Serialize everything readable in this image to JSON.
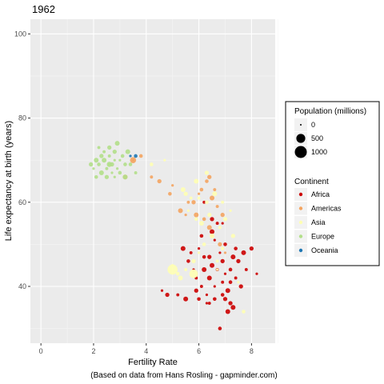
{
  "chart_data": {
    "type": "scatter",
    "title": "1962",
    "xlabel": "Fertility Rate",
    "ylabel": "Life expectancy at birth (years)",
    "caption": "(Based on data from Hans Rosling - gapminder.com)",
    "xlim": [
      -0.4,
      8.9
    ],
    "ylim": [
      26.5,
      103.5
    ],
    "x_ticks": [
      0,
      2,
      4,
      6,
      8
    ],
    "y_ticks": [
      40,
      60,
      80,
      100
    ],
    "grid": true,
    "legend_placement": "right",
    "size_legend": {
      "title": "Population (millions)",
      "entries": [
        {
          "label": "0",
          "value": 0
        },
        {
          "label": "500",
          "value": 500
        },
        {
          "label": "1000",
          "value": 1000
        }
      ]
    },
    "color_legend": {
      "title": "Continent",
      "entries": [
        {
          "label": "Africa",
          "color": "#cc0000"
        },
        {
          "label": "Americas",
          "color": "#f4a460"
        },
        {
          "label": "Asia",
          "color": "#ffffb3"
        },
        {
          "label": "Europe",
          "color": "#b2df8a"
        },
        {
          "label": "Oceania",
          "color": "#1f78b4"
        }
      ]
    },
    "series": [
      {
        "continent": "Africa",
        "color": "#cc0000",
        "points": [
          [
            6.0,
            49
          ],
          [
            6.2,
            47
          ],
          [
            6.5,
            45
          ],
          [
            6.7,
            44
          ],
          [
            6.9,
            46
          ],
          [
            7.0,
            43
          ],
          [
            7.2,
            41
          ],
          [
            6.4,
            42
          ],
          [
            6.1,
            40
          ],
          [
            5.9,
            39
          ],
          [
            6.3,
            38
          ],
          [
            6.6,
            37
          ],
          [
            7.1,
            39
          ],
          [
            7.4,
            42
          ],
          [
            7.6,
            40
          ],
          [
            6.8,
            48
          ],
          [
            7.0,
            50
          ],
          [
            7.3,
            47
          ],
          [
            7.8,
            44
          ],
          [
            8.0,
            49
          ],
          [
            8.2,
            43
          ],
          [
            6.1,
            52
          ],
          [
            6.5,
            53
          ],
          [
            6.7,
            55
          ],
          [
            7.5,
            46
          ],
          [
            5.8,
            44
          ],
          [
            5.6,
            46
          ],
          [
            6.2,
            44
          ],
          [
            6.9,
            41
          ],
          [
            7.2,
            36
          ],
          [
            6.3,
            36
          ],
          [
            6.0,
            37
          ],
          [
            5.5,
            37
          ],
          [
            5.2,
            38
          ],
          [
            4.8,
            38
          ],
          [
            4.6,
            39
          ],
          [
            6.8,
            30
          ],
          [
            7.3,
            35
          ],
          [
            6.4,
            36
          ],
          [
            7.0,
            37
          ],
          [
            6.6,
            40
          ],
          [
            6.9,
            38
          ],
          [
            7.1,
            34
          ],
          [
            5.9,
            42
          ],
          [
            6.4,
            47
          ],
          [
            6.6,
            51
          ],
          [
            7.4,
            49
          ],
          [
            7.7,
            48
          ],
          [
            6.2,
            60
          ],
          [
            6.5,
            56
          ],
          [
            6.9,
            55
          ],
          [
            7.2,
            44
          ],
          [
            5.4,
            49
          ],
          [
            5.7,
            48
          ]
        ]
      },
      {
        "continent": "Americas",
        "color": "#f4a460",
        "points": [
          [
            3.5,
            70
          ],
          [
            3.8,
            71
          ],
          [
            3.2,
            66
          ],
          [
            4.2,
            66
          ],
          [
            4.5,
            65
          ],
          [
            5.0,
            64
          ],
          [
            4.9,
            62
          ],
          [
            5.3,
            58
          ],
          [
            5.6,
            60
          ],
          [
            5.8,
            60
          ],
          [
            6.0,
            62
          ],
          [
            6.2,
            56
          ],
          [
            6.4,
            54
          ],
          [
            6.5,
            52
          ],
          [
            6.8,
            50
          ],
          [
            7.0,
            48
          ],
          [
            6.3,
            65
          ],
          [
            6.5,
            61
          ],
          [
            6.7,
            59
          ],
          [
            6.9,
            57
          ],
          [
            5.5,
            57
          ],
          [
            6.1,
            63
          ],
          [
            5.9,
            57
          ],
          [
            6.6,
            63
          ],
          [
            6.4,
            66
          ]
        ]
      },
      {
        "continent": "Asia",
        "color": "#ffffb3",
        "points": [
          [
            5.0,
            45
          ],
          [
            5.2,
            43
          ],
          [
            5.3,
            42
          ],
          [
            5.5,
            44
          ],
          [
            5.8,
            46
          ],
          [
            6.0,
            48
          ],
          [
            6.2,
            50
          ],
          [
            6.5,
            52
          ],
          [
            6.8,
            54
          ],
          [
            7.0,
            56
          ],
          [
            7.2,
            58
          ],
          [
            6.3,
            60
          ],
          [
            6.6,
            62
          ],
          [
            6.9,
            60
          ],
          [
            5.5,
            62
          ],
          [
            5.6,
            58
          ],
          [
            5.9,
            56
          ],
          [
            6.1,
            55
          ],
          [
            6.7,
            46
          ],
          [
            7.3,
            52
          ],
          [
            7.5,
            41
          ],
          [
            7.7,
            34
          ],
          [
            5.9,
            65
          ],
          [
            6.0,
            61
          ],
          [
            6.3,
            67
          ],
          [
            4.7,
            70
          ],
          [
            4.2,
            69
          ],
          [
            5.4,
            63
          ],
          [
            5.7,
            61
          ],
          [
            6.4,
            57
          ],
          [
            6.7,
            44
          ],
          [
            6.9,
            49
          ]
        ]
      },
      {
        "continent": "Europe",
        "color": "#b2df8a",
        "points": [
          [
            2.0,
            68
          ],
          [
            2.2,
            69
          ],
          [
            2.4,
            70
          ],
          [
            2.6,
            71
          ],
          [
            2.8,
            72
          ],
          [
            3.0,
            70
          ],
          [
            3.2,
            69
          ],
          [
            2.3,
            67
          ],
          [
            2.5,
            68
          ],
          [
            2.7,
            69
          ],
          [
            2.9,
            68
          ],
          [
            3.1,
            71
          ],
          [
            2.1,
            70
          ],
          [
            2.4,
            72
          ],
          [
            2.6,
            73
          ],
          [
            2.8,
            70
          ],
          [
            3.0,
            67
          ],
          [
            3.2,
            66
          ],
          [
            2.2,
            73
          ],
          [
            2.5,
            66
          ],
          [
            2.7,
            67
          ],
          [
            3.4,
            69
          ],
          [
            2.9,
            74
          ],
          [
            3.6,
            67
          ],
          [
            2.3,
            71
          ],
          [
            2.8,
            66
          ],
          [
            2.1,
            66
          ],
          [
            3.3,
            72
          ],
          [
            2.6,
            69
          ],
          [
            1.9,
            69
          ]
        ]
      },
      {
        "continent": "Oceania",
        "color": "#1f78b4",
        "points": [
          [
            3.4,
            71
          ],
          [
            3.6,
            71
          ]
        ]
      }
    ],
    "big_points": [
      {
        "continent": "Asia",
        "x": 5.0,
        "y": 44,
        "population": 660
      },
      {
        "continent": "Asia",
        "x": 5.8,
        "y": 43,
        "population": 450
      },
      {
        "continent": "Americas",
        "x": 3.5,
        "y": 70,
        "population": 190
      },
      {
        "continent": "Europe",
        "x": 2.6,
        "y": 69,
        "population": 120
      }
    ]
  }
}
